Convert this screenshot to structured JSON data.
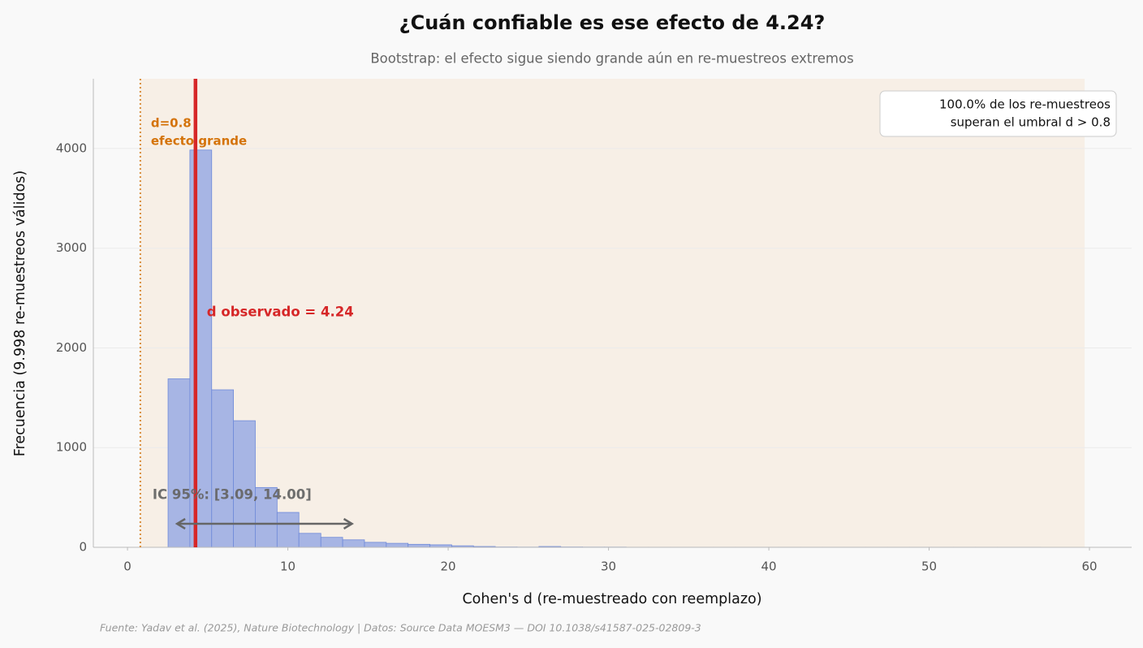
{
  "chart_data": {
    "type": "histogram",
    "title": "¿Cuán confiable es ese efecto de 4.24?",
    "subtitle": "Bootstrap: el efecto sigue siendo grande aún en re-muestreos extremos",
    "x_label": "Cohen's d (re-muestreado con reemplazo)",
    "y_label": "Frecuencia (9.998 re-muestreos válidos)",
    "source": "Fuente: Yadav et al. (2025), Nature Biotechnology | Datos: Source Data MOESM3 — DOI 10.1038/s41587-025-02809-3",
    "bins": [
      2.53,
      3.89,
      5.25,
      6.61,
      7.97,
      9.33,
      10.69,
      12.06,
      13.42,
      14.78,
      16.14,
      17.5,
      18.86,
      20.22,
      21.58,
      22.94,
      24.3,
      25.66,
      27.02,
      28.38,
      29.74,
      31.1,
      32.47,
      33.83,
      35.19,
      36.55,
      37.91,
      39.27,
      40.63,
      41.99,
      43.35,
      44.71,
      46.07,
      47.43,
      48.79,
      50.15,
      51.51,
      52.88,
      54.24,
      55.6,
      56.96
    ],
    "counts": [
      1690,
      3985,
      1580,
      1270,
      600,
      350,
      140,
      100,
      75,
      50,
      40,
      30,
      25,
      15,
      8,
      3,
      2,
      8,
      3,
      2,
      2,
      1,
      1,
      1,
      1,
      1,
      1,
      1,
      1,
      1,
      1,
      1,
      1,
      1,
      1,
      1,
      1,
      1,
      1,
      1
    ],
    "color": "#a7b5e4",
    "edge_color": "#6f8ad9",
    "xlim": [
      -2.13,
      62.63
    ],
    "ylim": [
      0,
      4700
    ],
    "xticks": [
      0,
      10,
      20,
      30,
      40,
      50,
      60
    ],
    "yticks": [
      0,
      1000,
      2000,
      3000,
      4000
    ],
    "grid": true,
    "shade_range": [
      0.8,
      59.7
    ],
    "shade_color": "#f7efe6",
    "reference_lines": [
      {
        "value": 0.8,
        "color": "#d98c3a",
        "style": "dotted"
      },
      {
        "value": 4.24,
        "color": "#d62728",
        "style": "solid"
      }
    ],
    "threshold_label": [
      "d=0.8",
      "efecto grande"
    ],
    "observed_label": "d observado = 4.24",
    "ci": [
      3.09,
      14.0
    ],
    "ci_label": "IC 95%: [3.09, 14.00]",
    "summary_box": [
      "100.0% de los re-muestreos",
      "superan el umbral d > 0.8"
    ]
  }
}
